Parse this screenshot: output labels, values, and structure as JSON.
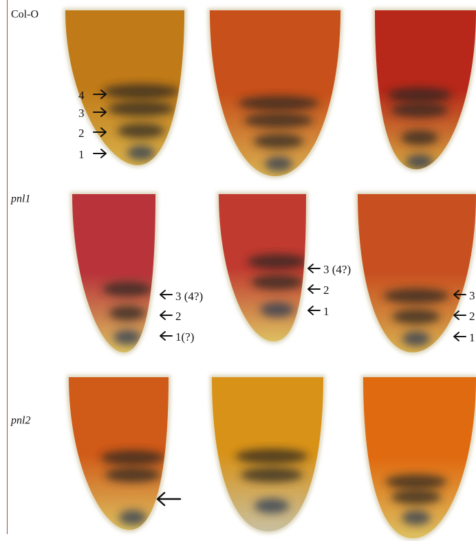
{
  "rows": [
    {
      "label": "Col-O",
      "labels_panel_1": [
        "4",
        "3",
        "2",
        "1"
      ]
    },
    {
      "label": "pnl1",
      "labels_panel_1": [
        "3 (4?)",
        "2",
        "1(?)"
      ],
      "labels_panel_2": [
        "3 (4?)",
        "2",
        "1"
      ],
      "labels_panel_3": [
        "3",
        "2",
        "1"
      ]
    },
    {
      "label": "pnl2"
    }
  ]
}
